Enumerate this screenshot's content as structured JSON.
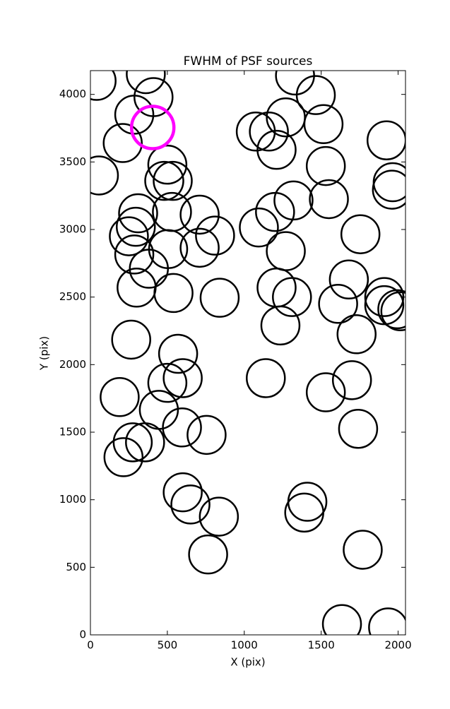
{
  "chart_data": {
    "type": "scatter",
    "title": "FWHM of PSF sources",
    "x_label": "X (pix)",
    "y_label": "Y (pix)",
    "xlim": [
      0,
      2048
    ],
    "ylim": [
      0,
      4176
    ],
    "xticks": [
      0,
      500,
      1000,
      1500,
      2000
    ],
    "yticks": [
      0,
      500,
      1000,
      1500,
      2000,
      2500,
      3000,
      3500,
      4000
    ],
    "series": [
      {
        "color": "#000000",
        "x": [
          40,
          360,
          410,
          285,
          210,
          55,
          500,
          480,
          535,
          310,
          530,
          710,
          295,
          250,
          810,
          710,
          505,
          285,
          380,
          300,
          540,
          840,
          265,
          570,
          600,
          500,
          190,
          445,
          595,
          755,
          275,
          355,
          215,
          600,
          650,
          835,
          765,
          1075,
          1160,
          1210,
          1270,
          1330,
          1465,
          1515,
          1530,
          1550,
          1320,
          1200,
          1095,
          1270,
          1755,
          1680,
          1210,
          1310,
          1610,
          1235,
          1730,
          1925,
          1965,
          1960,
          1910,
          1910,
          1995,
          2015,
          1140,
          1700,
          1530,
          1740,
          1410,
          1390,
          1770,
          1635,
          1935
        ],
        "values": [
          4100,
          4150,
          3980,
          3850,
          3640,
          3400,
          3480,
          3360,
          3360,
          3120,
          3130,
          3110,
          3020,
          2950,
          2955,
          2865,
          2855,
          2815,
          2710,
          2570,
          2530,
          2495,
          2185,
          2080,
          1900,
          1865,
          1760,
          1665,
          1535,
          1480,
          1425,
          1425,
          1315,
          1055,
          965,
          875,
          595,
          3725,
          3725,
          3590,
          3830,
          4140,
          3995,
          3780,
          3470,
          3225,
          3215,
          3130,
          3015,
          2840,
          2965,
          2630,
          2570,
          2500,
          2450,
          2290,
          2225,
          3660,
          3350,
          3295,
          2500,
          2440,
          2410,
          2395,
          1900,
          1885,
          1795,
          1525,
          985,
          905,
          630,
          80,
          55
        ]
      },
      {
        "color": "#ff00ff",
        "x": [
          405
        ],
        "values": [
          3755
        ]
      }
    ]
  }
}
